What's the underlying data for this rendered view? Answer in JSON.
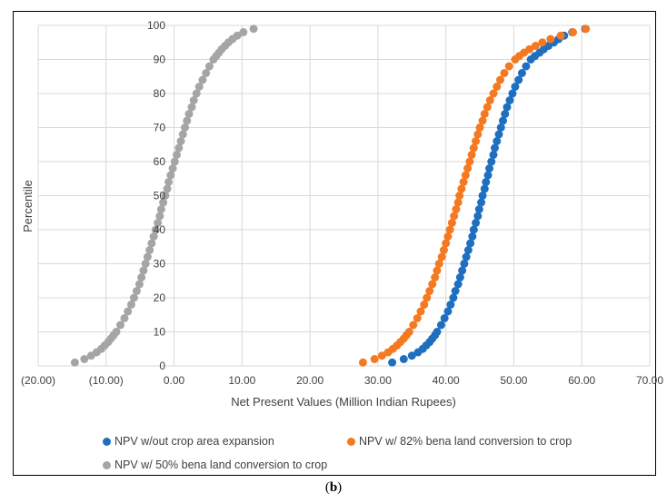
{
  "caption": {
    "open": "(",
    "letter": "b",
    "close": ")"
  },
  "chart_data": {
    "type": "scatter",
    "title": "",
    "xlabel": "Net Present Values (Million Indian Rupees)",
    "ylabel": "Percentile",
    "xlim": [
      -20,
      70
    ],
    "ylim": [
      0,
      100
    ],
    "x_ticks": [
      "(20.00)",
      "(10.00)",
      "0.00",
      "10.00",
      "20.00",
      "30.00",
      "40.00",
      "50.00",
      "60.00",
      "70.00"
    ],
    "y_ticks": [
      "0",
      "10",
      "20",
      "30",
      "40",
      "50",
      "60",
      "70",
      "80",
      "90",
      "100"
    ],
    "grid": true,
    "legend_position": "bottom",
    "series": [
      {
        "name": "NPV w/out crop area expansion",
        "color": "#1f6fc1",
        "points": [
          [
            32.1,
            1
          ],
          [
            33.8,
            2
          ],
          [
            35.0,
            3
          ],
          [
            35.9,
            4
          ],
          [
            36.6,
            5
          ],
          [
            37.1,
            6
          ],
          [
            37.6,
            7
          ],
          [
            38.0,
            8
          ],
          [
            38.4,
            9
          ],
          [
            38.7,
            10
          ],
          [
            39.3,
            12
          ],
          [
            39.8,
            14
          ],
          [
            40.3,
            16
          ],
          [
            40.7,
            18
          ],
          [
            41.1,
            20
          ],
          [
            41.4,
            22
          ],
          [
            41.8,
            24
          ],
          [
            42.1,
            26
          ],
          [
            42.4,
            28
          ],
          [
            42.7,
            30
          ],
          [
            43.0,
            32
          ],
          [
            43.3,
            34
          ],
          [
            43.6,
            36
          ],
          [
            43.9,
            38
          ],
          [
            44.1,
            40
          ],
          [
            44.4,
            42
          ],
          [
            44.7,
            44
          ],
          [
            44.9,
            46
          ],
          [
            45.2,
            48
          ],
          [
            45.4,
            50
          ],
          [
            45.7,
            52
          ],
          [
            45.9,
            54
          ],
          [
            46.2,
            56
          ],
          [
            46.4,
            58
          ],
          [
            46.7,
            60
          ],
          [
            47.0,
            62
          ],
          [
            47.2,
            64
          ],
          [
            47.5,
            66
          ],
          [
            47.8,
            68
          ],
          [
            48.1,
            70
          ],
          [
            48.4,
            72
          ],
          [
            48.7,
            74
          ],
          [
            49.0,
            76
          ],
          [
            49.4,
            78
          ],
          [
            49.8,
            80
          ],
          [
            50.2,
            82
          ],
          [
            50.7,
            84
          ],
          [
            51.2,
            86
          ],
          [
            51.8,
            88
          ],
          [
            52.5,
            90
          ],
          [
            53.1,
            91
          ],
          [
            53.8,
            92
          ],
          [
            54.4,
            93
          ],
          [
            55.1,
            94
          ],
          [
            55.9,
            95
          ],
          [
            56.6,
            96
          ],
          [
            57.4,
            97
          ],
          [
            58.6,
            98
          ],
          [
            60.5,
            99
          ]
        ]
      },
      {
        "name": "NPV w/  82% bena land conversion to crop",
        "color": "#f47920",
        "points": [
          [
            27.8,
            1
          ],
          [
            29.5,
            2
          ],
          [
            30.6,
            3
          ],
          [
            31.5,
            4
          ],
          [
            32.2,
            5
          ],
          [
            32.8,
            6
          ],
          [
            33.3,
            7
          ],
          [
            33.8,
            8
          ],
          [
            34.2,
            9
          ],
          [
            34.6,
            10
          ],
          [
            35.2,
            12
          ],
          [
            35.8,
            14
          ],
          [
            36.3,
            16
          ],
          [
            36.8,
            18
          ],
          [
            37.2,
            20
          ],
          [
            37.6,
            22
          ],
          [
            38.0,
            24
          ],
          [
            38.4,
            26
          ],
          [
            38.7,
            28
          ],
          [
            39.0,
            30
          ],
          [
            39.4,
            32
          ],
          [
            39.7,
            34
          ],
          [
            40.0,
            36
          ],
          [
            40.3,
            38
          ],
          [
            40.6,
            40
          ],
          [
            40.9,
            42
          ],
          [
            41.2,
            44
          ],
          [
            41.5,
            46
          ],
          [
            41.8,
            48
          ],
          [
            42.0,
            50
          ],
          [
            42.3,
            52
          ],
          [
            42.6,
            54
          ],
          [
            42.9,
            56
          ],
          [
            43.2,
            58
          ],
          [
            43.5,
            60
          ],
          [
            43.8,
            62
          ],
          [
            44.1,
            64
          ],
          [
            44.4,
            66
          ],
          [
            44.7,
            68
          ],
          [
            45.0,
            70
          ],
          [
            45.4,
            72
          ],
          [
            45.7,
            74
          ],
          [
            46.1,
            76
          ],
          [
            46.5,
            78
          ],
          [
            47.0,
            80
          ],
          [
            47.5,
            82
          ],
          [
            48.0,
            84
          ],
          [
            48.6,
            86
          ],
          [
            49.3,
            88
          ],
          [
            50.2,
            90
          ],
          [
            50.8,
            91
          ],
          [
            51.5,
            92
          ],
          [
            52.3,
            93
          ],
          [
            53.2,
            94
          ],
          [
            54.2,
            95
          ],
          [
            55.4,
            96
          ],
          [
            56.9,
            97
          ],
          [
            58.7,
            98
          ],
          [
            60.6,
            99
          ]
        ]
      },
      {
        "name": "NPV w/  50%  bena land conversion to crop",
        "color": "#a5a5a5",
        "points": [
          [
            -14.6,
            1
          ],
          [
            -13.2,
            2
          ],
          [
            -12.2,
            3
          ],
          [
            -11.4,
            4
          ],
          [
            -10.7,
            5
          ],
          [
            -10.2,
            6
          ],
          [
            -9.7,
            7
          ],
          [
            -9.3,
            8
          ],
          [
            -8.9,
            9
          ],
          [
            -8.5,
            10
          ],
          [
            -7.9,
            12
          ],
          [
            -7.3,
            14
          ],
          [
            -6.8,
            16
          ],
          [
            -6.3,
            18
          ],
          [
            -5.9,
            20
          ],
          [
            -5.5,
            22
          ],
          [
            -5.1,
            24
          ],
          [
            -4.8,
            26
          ],
          [
            -4.5,
            28
          ],
          [
            -4.2,
            30
          ],
          [
            -3.9,
            32
          ],
          [
            -3.6,
            34
          ],
          [
            -3.3,
            36
          ],
          [
            -3.0,
            38
          ],
          [
            -2.7,
            40
          ],
          [
            -2.4,
            42
          ],
          [
            -2.1,
            44
          ],
          [
            -1.9,
            46
          ],
          [
            -1.6,
            48
          ],
          [
            -1.3,
            50
          ],
          [
            -1.0,
            52
          ],
          [
            -0.8,
            54
          ],
          [
            -0.5,
            56
          ],
          [
            -0.2,
            58
          ],
          [
            0.1,
            60
          ],
          [
            0.4,
            62
          ],
          [
            0.7,
            64
          ],
          [
            1.0,
            66
          ],
          [
            1.3,
            68
          ],
          [
            1.6,
            70
          ],
          [
            1.9,
            72
          ],
          [
            2.2,
            74
          ],
          [
            2.6,
            76
          ],
          [
            2.9,
            78
          ],
          [
            3.3,
            80
          ],
          [
            3.7,
            82
          ],
          [
            4.2,
            84
          ],
          [
            4.7,
            86
          ],
          [
            5.2,
            88
          ],
          [
            5.8,
            90
          ],
          [
            6.2,
            91
          ],
          [
            6.6,
            92
          ],
          [
            7.0,
            93
          ],
          [
            7.5,
            94
          ],
          [
            8.0,
            95
          ],
          [
            8.6,
            96
          ],
          [
            9.3,
            97
          ],
          [
            10.2,
            98
          ],
          [
            11.7,
            99
          ]
        ]
      }
    ]
  }
}
